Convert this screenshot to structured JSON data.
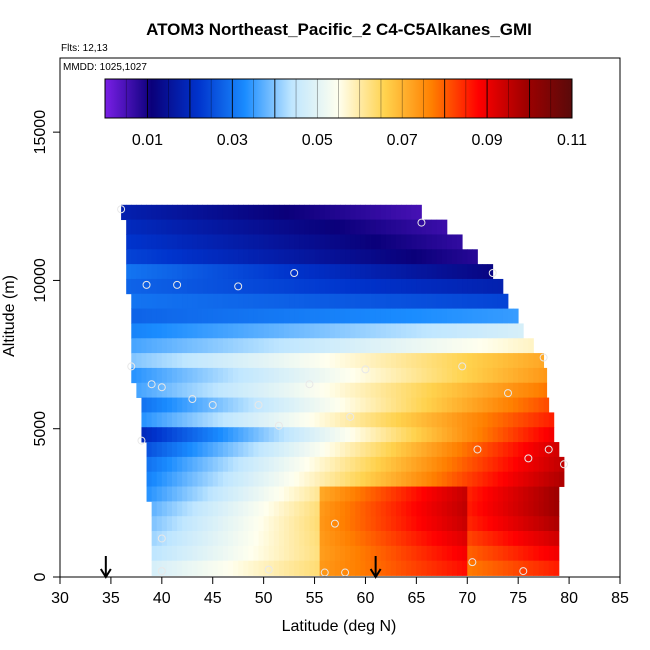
{
  "chart_data": {
    "type": "heatmap",
    "title": "ATOM3 Northeast_Pacific_2 C4-C5Alkanes_GMI",
    "flights_text": "Flts: 12,13",
    "mmdd_text": "MMDD: 1025,1027",
    "xlabel": "Latitude (deg N)",
    "ylabel": "Altitude (m)",
    "xlim": [
      30,
      85
    ],
    "ylim": [
      0,
      17500
    ],
    "xticks": [
      "30",
      "35",
      "40",
      "45",
      "50",
      "55",
      "60",
      "65",
      "70",
      "75",
      "80",
      "85"
    ],
    "yticks": [
      "0",
      "5000",
      "10000",
      "15000"
    ],
    "colorbar": {
      "range": [
        0,
        0.11
      ],
      "tick_labels": [
        "0.01",
        "0.03",
        "0.05",
        "0.07",
        "0.09",
        "0.11"
      ],
      "tick_values": [
        0.01,
        0.03,
        0.05,
        0.07,
        0.09,
        0.11
      ],
      "stops": [
        "#7a1fe6",
        "#0a007a",
        "#0033cc",
        "#1a8cff",
        "#bfe6ff",
        "#ffffee",
        "#ffd24d",
        "#ff7f00",
        "#ff0000",
        "#a00000",
        "#5a0a0a"
      ]
    },
    "curtain": {
      "layers": [
        {
          "alt": 12300,
          "lat_start": 36.0,
          "lat_end": 65.5,
          "v0": 0.018,
          "v1": 0.005
        },
        {
          "alt": 11800,
          "lat_start": 36.5,
          "lat_end": 68.0,
          "v0": 0.02,
          "v1": 0.006
        },
        {
          "alt": 11300,
          "lat_start": 36.5,
          "lat_end": 69.5,
          "v0": 0.022,
          "v1": 0.007
        },
        {
          "alt": 10800,
          "lat_start": 36.5,
          "lat_end": 71.0,
          "v0": 0.024,
          "v1": 0.008
        },
        {
          "alt": 10300,
          "lat_start": 36.5,
          "lat_end": 72.5,
          "v0": 0.03,
          "v1": 0.012
        },
        {
          "alt": 9800,
          "lat_start": 36.5,
          "lat_end": 73.5,
          "v0": 0.028,
          "v1": 0.018
        },
        {
          "alt": 9300,
          "lat_start": 37.0,
          "lat_end": 74.0,
          "v0": 0.03,
          "v1": 0.024
        },
        {
          "alt": 8800,
          "lat_start": 37.0,
          "lat_end": 75.0,
          "v0": 0.028,
          "v1": 0.035
        },
        {
          "alt": 8300,
          "lat_start": 37.0,
          "lat_end": 75.5,
          "v0": 0.032,
          "v1": 0.048
        },
        {
          "alt": 7800,
          "lat_start": 37.0,
          "lat_end": 76.5,
          "v0": 0.036,
          "v1": 0.058
        },
        {
          "alt": 7300,
          "lat_start": 37.0,
          "lat_end": 77.5,
          "v0": 0.04,
          "v1": 0.072
        },
        {
          "alt": 6800,
          "lat_start": 37.0,
          "lat_end": 77.8,
          "v0": 0.034,
          "v1": 0.074
        },
        {
          "alt": 6300,
          "lat_start": 37.5,
          "lat_end": 77.8,
          "v0": 0.036,
          "v1": 0.078
        },
        {
          "alt": 5800,
          "lat_start": 38.0,
          "lat_end": 78.0,
          "v0": 0.03,
          "v1": 0.082
        },
        {
          "alt": 5300,
          "lat_start": 38.0,
          "lat_end": 78.5,
          "v0": 0.034,
          "v1": 0.086
        },
        {
          "alt": 4800,
          "lat_start": 38.0,
          "lat_end": 78.5,
          "v0": 0.02,
          "v1": 0.09
        },
        {
          "alt": 4300,
          "lat_start": 38.5,
          "lat_end": 79.0,
          "v0": 0.026,
          "v1": 0.094
        },
        {
          "alt": 3800,
          "lat_start": 38.5,
          "lat_end": 79.5,
          "v0": 0.03,
          "v1": 0.096
        },
        {
          "alt": 3300,
          "lat_start": 38.5,
          "lat_end": 79.5,
          "v0": 0.032,
          "v1": 0.098
        },
        {
          "alt": 2800,
          "lat_start": 38.5,
          "lat_end": 79.0,
          "v0": 0.034,
          "v1": 0.1
        },
        {
          "alt": 2300,
          "lat_start": 39.0,
          "lat_end": 79.0,
          "v0": 0.038,
          "v1": 0.1
        },
        {
          "alt": 1800,
          "lat_start": 39.0,
          "lat_end": 79.0,
          "v0": 0.04,
          "v1": 0.098
        },
        {
          "alt": 1300,
          "lat_start": 39.0,
          "lat_end": 79.0,
          "v0": 0.042,
          "v1": 0.094
        },
        {
          "alt": 800,
          "lat_start": 39.0,
          "lat_end": 79.0,
          "v0": 0.044,
          "v1": 0.09
        },
        {
          "alt": 300,
          "lat_start": 39.0,
          "lat_end": 79.0,
          "v0": 0.048,
          "v1": 0.086
        }
      ]
    },
    "flight_points": [
      [
        36.0,
        12400
      ],
      [
        65.5,
        11950
      ],
      [
        38.5,
        9850
      ],
      [
        41.5,
        9850
      ],
      [
        47.5,
        9800
      ],
      [
        53.0,
        10250
      ],
      [
        72.5,
        10250
      ],
      [
        37.0,
        7100
      ],
      [
        39.0,
        6500
      ],
      [
        40.0,
        6400
      ],
      [
        43.0,
        6000
      ],
      [
        45.0,
        5800
      ],
      [
        49.5,
        5800
      ],
      [
        51.5,
        5100
      ],
      [
        54.5,
        6500
      ],
      [
        58.5,
        5400
      ],
      [
        60.0,
        7000
      ],
      [
        69.5,
        7100
      ],
      [
        74.0,
        6200
      ],
      [
        77.5,
        7400
      ],
      [
        38.0,
        4600
      ],
      [
        71.0,
        4300
      ],
      [
        76.0,
        4000
      ],
      [
        78.0,
        4300
      ],
      [
        79.5,
        3800
      ],
      [
        40.0,
        1300
      ],
      [
        57.0,
        1800
      ],
      [
        40.0,
        200
      ],
      [
        50.5,
        250
      ],
      [
        56.0,
        150
      ],
      [
        58.0,
        150
      ],
      [
        70.5,
        500
      ],
      [
        75.5,
        200
      ]
    ],
    "arrows_lat": [
      34.5,
      61.0
    ]
  }
}
